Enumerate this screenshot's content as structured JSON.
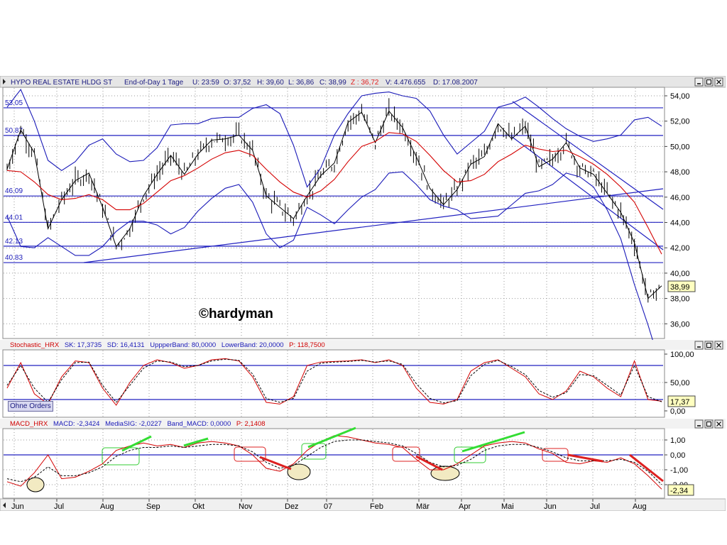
{
  "window": {
    "title_symbol": "HYPO REAL ESTATE HLDG ST",
    "title_meta": "End-of-Day 1 Tage",
    "quote": {
      "U": "U: 23:59",
      "O": "O: 37,52",
      "H": "H: 39,60",
      "L": "L: 36,86",
      "C": "C: 38,99",
      "Z": "Z : 36,72",
      "V": "V: 4.476.655",
      "D": "D: 17.08.2007"
    },
    "watermark": "©hardyman",
    "orders_button": "Ohne Orders"
  },
  "chart_data": [
    {
      "type": "line",
      "name": "price",
      "ylim": [
        35,
        55
      ],
      "y_ticks": [
        "54,00",
        "52,00",
        "50,00",
        "48,00",
        "46,00",
        "44,00",
        "42,00",
        "40,00",
        "38,00",
        "36,00"
      ],
      "x_labels": [
        "Jun",
        "Jul",
        "Aug",
        "Sep",
        "Okt",
        "Nov",
        "Dez",
        "07",
        "Feb",
        "Mär",
        "Apr",
        "Mai",
        "Jun",
        "Jul",
        "Aug"
      ],
      "horizontal_lines": [
        {
          "label": "53.05",
          "value": 53.05
        },
        {
          "label": "50.87",
          "value": 50.87
        },
        {
          "label": "46.09",
          "value": 46.09
        },
        {
          "label": "44.01",
          "value": 44.01
        },
        {
          "label": "42.13",
          "value": 42.13
        },
        {
          "label": "40.83",
          "value": 40.83
        }
      ],
      "last_value_label": "38,99",
      "series": [
        {
          "values": [
            48.2,
            51.3,
            49.5,
            43.5,
            45.8,
            47.3,
            47.9,
            45.2,
            42.1,
            43.5,
            46.1,
            47.8,
            49.3,
            47.8,
            49.4,
            50.5,
            50.6,
            50.9,
            49.7,
            46.1,
            45.2,
            44.3,
            46.1,
            47.7,
            48.7,
            51.9,
            52.7,
            50.3,
            52.8,
            51.5,
            49.2,
            46.7,
            45.4,
            46.6,
            48.6,
            49.2,
            51.8,
            50.6,
            51.6,
            48.4,
            49.0,
            50.3,
            48.3,
            47.8,
            46.3,
            44.8,
            42.4,
            38.0,
            39.0
          ]
        },
        {
          "values": [
            48.1,
            48.0,
            47.2,
            46.2,
            45.8,
            45.9,
            46.2,
            45.8,
            45.0,
            45.0,
            45.5,
            46.4,
            47.3,
            47.7,
            48.3,
            49.0,
            49.5,
            49.7,
            49.3,
            48.2,
            47.2,
            46.4,
            46.0,
            46.5,
            47.4,
            48.8,
            50.0,
            50.4,
            51.1,
            51.0,
            50.4,
            49.3,
            48.1,
            47.2,
            47.3,
            47.8,
            48.8,
            49.4,
            50.1,
            49.8,
            49.6,
            49.7,
            49.2,
            48.6,
            47.8,
            46.8,
            45.6,
            43.6,
            41.5
          ]
        },
        {
          "values": [
            53.1,
            54.5,
            52.0,
            48.9,
            48.1,
            48.8,
            50.1,
            50.6,
            49.4,
            48.8,
            48.9,
            49.9,
            51.7,
            51.8,
            51.8,
            52.2,
            52.3,
            52.3,
            53.0,
            53.3,
            52.6,
            50.1,
            46.8,
            48.3,
            50.9,
            52.6,
            54.0,
            54.2,
            54.3,
            54.0,
            53.8,
            52.8,
            50.9,
            49.4,
            50.3,
            51.2,
            53.1,
            53.4,
            53.9,
            53.1,
            52.2,
            51.4,
            50.8,
            50.4,
            50.6,
            50.9,
            52.1,
            52.3,
            51.6
          ]
        },
        {
          "values": [
            44.5,
            42.1,
            42.0,
            42.8,
            42.1,
            41.4,
            41.4,
            42.1,
            43.3,
            44.1,
            44.1,
            43.8,
            43.1,
            43.6,
            44.9,
            45.9,
            46.7,
            47.0,
            45.6,
            43.1,
            42.0,
            42.6,
            45.2,
            44.6,
            43.9,
            45.0,
            46.0,
            46.6,
            47.9,
            48.0,
            47.0,
            45.8,
            45.3,
            45.0,
            44.3,
            44.4,
            44.5,
            45.4,
            46.3,
            46.5,
            47.0,
            47.9,
            47.6,
            46.8,
            45.0,
            42.7,
            39.1,
            35.9,
            32.4
          ]
        }
      ]
    },
    {
      "type": "line",
      "name": "Stochastic_HRX",
      "legend": "Stochastic_HRX SK: 17,3735  SD: 16,4131  UppperBand: 80,0000  LowerBand: 20,0000  P: 118,7500",
      "ylim": [
        0,
        105
      ],
      "y_ticks": [
        "100,00",
        "50,00",
        "0,00"
      ],
      "bands": [
        80,
        20
      ],
      "last_value_label": "17,37",
      "series": [
        {
          "values": [
            40,
            85,
            30,
            12,
            60,
            88,
            85,
            40,
            10,
            50,
            80,
            90,
            85,
            75,
            80,
            90,
            92,
            88,
            60,
            15,
            12,
            25,
            80,
            86,
            87,
            88,
            90,
            85,
            90,
            80,
            40,
            15,
            12,
            20,
            70,
            85,
            90,
            75,
            60,
            30,
            20,
            35,
            70,
            60,
            40,
            25,
            88,
            20,
            17
          ]
        },
        {
          "values": [
            45,
            80,
            40,
            15,
            55,
            85,
            86,
            45,
            15,
            45,
            75,
            88,
            86,
            78,
            80,
            88,
            91,
            89,
            65,
            22,
            15,
            22,
            70,
            84,
            86,
            87,
            89,
            86,
            88,
            82,
            48,
            22,
            14,
            18,
            62,
            82,
            89,
            78,
            64,
            36,
            24,
            32,
            64,
            62,
            45,
            28,
            80,
            25,
            16
          ]
        }
      ]
    },
    {
      "type": "line",
      "name": "MACD_HRX",
      "legend": "MACD_HRX MACD: -2,3424  MediaSIG: -2,0227  Band_MACD: 0,0000  P: 2,1408",
      "ylim": [
        -2.7,
        1.7
      ],
      "y_ticks": [
        "1,00",
        "0,00",
        "-1,00",
        "-2,00"
      ],
      "last_value_label": "-2,34",
      "series": [
        {
          "values": [
            -1.8,
            -2.1,
            -1.2,
            0.0,
            -1.6,
            -1.5,
            -1.1,
            -0.6,
            0.3,
            0.6,
            0.8,
            0.6,
            0.7,
            0.5,
            0.8,
            0.9,
            0.8,
            0.6,
            0.0,
            -0.9,
            -1.1,
            -0.6,
            0.3,
            0.9,
            1.3,
            1.2,
            1.0,
            0.8,
            0.7,
            0.5,
            -0.3,
            -1.0,
            -1.0,
            -0.6,
            0.0,
            0.6,
            0.8,
            0.9,
            0.8,
            0.4,
            0.1,
            -0.5,
            -0.6,
            -0.4,
            -0.5,
            -0.2,
            -0.6,
            -1.4,
            -2.3
          ]
        },
        {
          "values": [
            -1.6,
            -1.8,
            -1.5,
            -0.8,
            -1.4,
            -1.4,
            -1.2,
            -0.8,
            -0.1,
            0.3,
            0.5,
            0.5,
            0.6,
            0.5,
            0.6,
            0.7,
            0.7,
            0.6,
            0.2,
            -0.5,
            -0.9,
            -0.7,
            -0.1,
            0.5,
            0.9,
            1.0,
            1.0,
            0.9,
            0.8,
            0.6,
            0.1,
            -0.5,
            -0.8,
            -0.7,
            -0.3,
            0.3,
            0.6,
            0.7,
            0.7,
            0.5,
            0.2,
            -0.2,
            -0.4,
            -0.4,
            -0.4,
            -0.3,
            -0.5,
            -1.1,
            -2.0
          ]
        }
      ]
    }
  ],
  "stoch_panel": {
    "title": "Stochastic_HRX",
    "sk": "SK: 17,3735",
    "sd": "SD: 16,4131",
    "upper": "UppperBand: 80,0000",
    "lower": "LowerBand: 20,0000",
    "p": "P: 118,7500"
  },
  "macd_panel": {
    "title": "MACD_HRX",
    "macd": "MACD: -2,3424",
    "sig": "MediaSIG: -2,0227",
    "band": "Band_MACD: 0,0000",
    "p": "P: 2,1408"
  },
  "colors": {
    "price_bars": "#000000",
    "moving_average": "#d40000",
    "bollinger": "#1a1ab8",
    "hlines": "#2020c0",
    "bullish_marks": "#33dd33",
    "bearish_marks": "#dd2020",
    "circles": "#f2eac2"
  },
  "icons": [
    "window-menu-icon",
    "minimize-icon",
    "maximize-icon",
    "close-icon"
  ]
}
